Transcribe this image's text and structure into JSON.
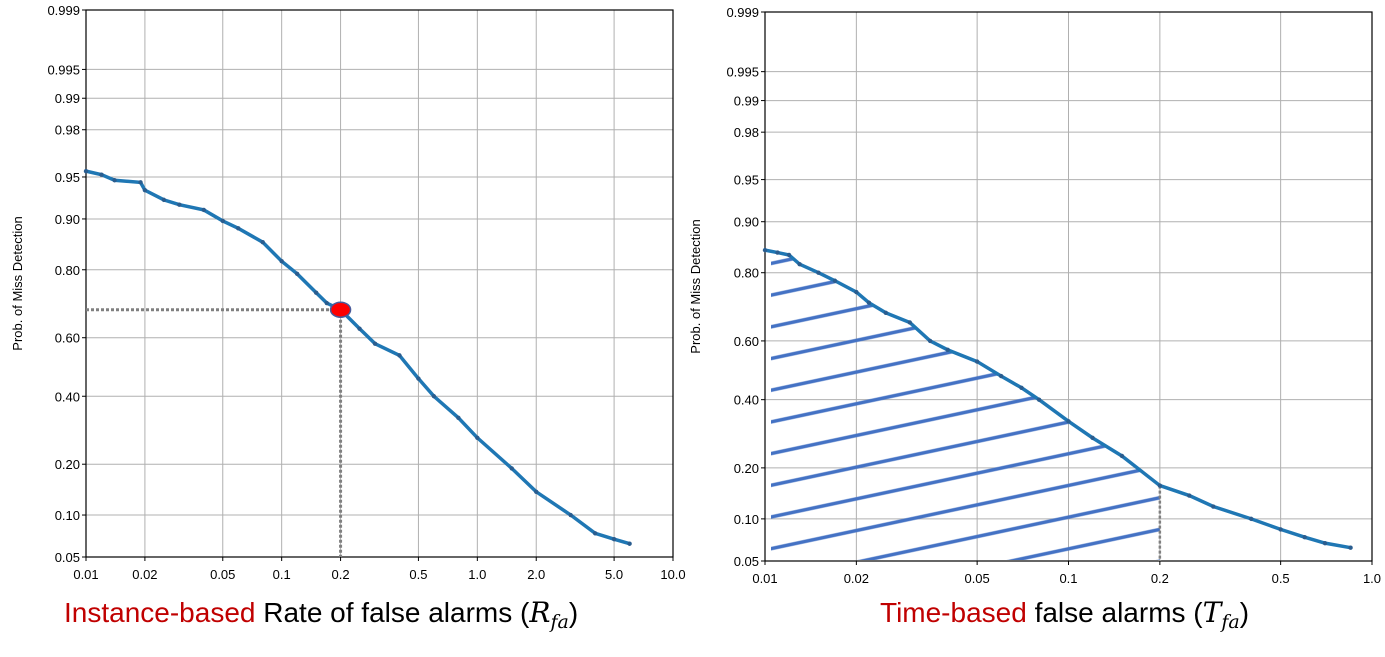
{
  "chart_data": [
    {
      "type": "line",
      "y_scale": "probit",
      "x_scale": "log",
      "grid": true,
      "ylabel": "Prob. of Miss Detection",
      "xlabel_highlight": "Instance-based",
      "highlight_color": "#c00000",
      "xlabel_parts": [
        " Rate of false alarms (",
        "R",
        "fa",
        ")"
      ],
      "xlim": [
        0.01,
        10
      ],
      "ylim": [
        0.05,
        0.999
      ],
      "xticks": [
        0.01,
        0.02,
        0.05,
        0.1,
        0.2,
        0.5,
        {
          "value": 1,
          "label": "1.0"
        },
        {
          "value": 2,
          "label": "2.0"
        },
        {
          "value": 5,
          "label": "5.0"
        },
        {
          "value": 10,
          "label": "10.0"
        }
      ],
      "yticks": [
        0.05,
        {
          "value": 0.1,
          "label": "0.10"
        },
        {
          "value": 0.2,
          "label": "0.20"
        },
        {
          "value": 0.4,
          "label": "0.40"
        },
        {
          "value": 0.6,
          "label": "0.60"
        },
        {
          "value": 0.8,
          "label": "0.80"
        },
        {
          "value": 0.9,
          "label": "0.90"
        },
        0.95,
        0.98,
        0.99,
        0.995,
        0.999
      ],
      "x": [
        0.01,
        0.012,
        0.014,
        0.019,
        0.02,
        0.025,
        0.03,
        0.04,
        0.05,
        0.06,
        0.08,
        0.1,
        0.12,
        0.15,
        0.17,
        0.2,
        0.25,
        0.3,
        0.4,
        0.5,
        0.6,
        0.8,
        1.0,
        1.5,
        2.0,
        3.0,
        4.0,
        5.0,
        6.0
      ],
      "series": [
        {
          "color": "#1f77b4",
          "values": [
            0.955,
            0.952,
            0.947,
            0.945,
            0.937,
            0.926,
            0.92,
            0.913,
            0.897,
            0.885,
            0.86,
            0.82,
            0.79,
            0.74,
            0.71,
            0.69,
            0.63,
            0.58,
            0.54,
            0.46,
            0.4,
            0.33,
            0.27,
            0.19,
            0.14,
            0.1,
            0.075,
            0.068,
            0.063
          ]
        }
      ],
      "highlight_point": {
        "x": 0.2,
        "y": 0.69,
        "color": "#ff0000"
      }
    },
    {
      "type": "line",
      "y_scale": "probit",
      "x_scale": "log",
      "grid": true,
      "ylabel": "Prob. of Miss Detection",
      "xlabel_highlight": "Time-based",
      "highlight_color": "#c00000",
      "xlabel_parts": [
        " false alarms (",
        "T",
        "fa",
        ")"
      ],
      "xlim": [
        0.01,
        1
      ],
      "ylim": [
        0.05,
        0.999
      ],
      "xticks": [
        0.01,
        0.02,
        0.05,
        0.1,
        0.2,
        0.5,
        {
          "value": 1,
          "label": "1.0"
        }
      ],
      "yticks": [
        0.05,
        {
          "value": 0.1,
          "label": "0.10"
        },
        {
          "value": 0.2,
          "label": "0.20"
        },
        {
          "value": 0.4,
          "label": "0.40"
        },
        {
          "value": 0.6,
          "label": "0.60"
        },
        {
          "value": 0.8,
          "label": "0.80"
        },
        {
          "value": 0.9,
          "label": "0.90"
        },
        0.95,
        0.98,
        0.99,
        0.995,
        0.999
      ],
      "x": [
        0.01,
        0.011,
        0.012,
        0.013,
        0.015,
        0.017,
        0.02,
        0.022,
        0.025,
        0.03,
        0.035,
        0.04,
        0.05,
        0.06,
        0.07,
        0.08,
        0.1,
        0.12,
        0.15,
        0.2,
        0.25,
        0.3,
        0.4,
        0.5,
        0.6,
        0.7,
        0.85
      ],
      "series": [
        {
          "color": "#1f77b4",
          "values": [
            0.85,
            0.845,
            0.84,
            0.82,
            0.8,
            0.78,
            0.75,
            0.72,
            0.69,
            0.66,
            0.6,
            0.57,
            0.53,
            0.48,
            0.44,
            0.4,
            0.33,
            0.28,
            0.23,
            0.16,
            0.14,
            0.12,
            0.1,
            0.085,
            0.075,
            0.068,
            0.063
          ]
        }
      ],
      "shaded_until_x": 0.2,
      "shade_color": "#4472c4"
    }
  ]
}
